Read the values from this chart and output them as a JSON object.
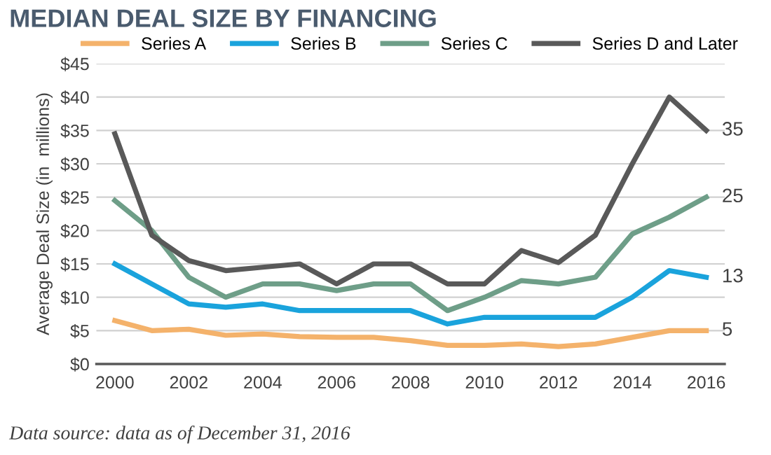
{
  "chart_data": {
    "type": "line",
    "title": "MEDIAN DEAL SIZE BY FINANCING",
    "ylabel": "Average Deal Size (in  millions)",
    "categories": [
      "2000",
      null,
      "2002",
      null,
      "2004",
      null,
      "2006",
      null,
      "2008",
      null,
      "2010",
      null,
      "2012",
      null,
      "2014",
      null,
      "2016"
    ],
    "series": [
      {
        "name": "Series A",
        "color": "#f4b26b",
        "values": [
          6.5,
          5,
          5.2,
          4.3,
          4.5,
          4.1,
          4,
          4,
          3.5,
          2.8,
          2.8,
          3,
          2.6,
          3,
          4,
          5,
          5
        ],
        "value_labels": [
          null,
          null,
          null,
          null,
          null,
          null,
          null,
          null,
          null,
          null,
          null,
          null,
          null,
          null,
          null,
          null,
          "5"
        ]
      },
      {
        "name": "Series B",
        "color": "#1aa3dc",
        "values": [
          15,
          12,
          9,
          8.5,
          9,
          8,
          8,
          8,
          8,
          6,
          7,
          7,
          7,
          7,
          10,
          14,
          13
        ],
        "value_labels": [
          null,
          null,
          null,
          null,
          null,
          null,
          null,
          null,
          null,
          null,
          null,
          null,
          null,
          null,
          null,
          null,
          "13"
        ]
      },
      {
        "name": "Series C",
        "color": "#6e9e88",
        "values": [
          24.5,
          20,
          13,
          10,
          12,
          12,
          11,
          12,
          12,
          8,
          10,
          12.5,
          12,
          13,
          19.5,
          22,
          25
        ],
        "value_labels": [
          null,
          null,
          null,
          null,
          null,
          null,
          null,
          null,
          null,
          null,
          null,
          null,
          null,
          null,
          null,
          null,
          "25"
        ]
      },
      {
        "name": "Series D and Later",
        "color": "#595959",
        "values": [
          34.5,
          19.3,
          15.5,
          14,
          14.5,
          15,
          12,
          15,
          15,
          12,
          12,
          17,
          15.2,
          19.3,
          30,
          40,
          35
        ],
        "value_labels": [
          null,
          null,
          null,
          null,
          null,
          null,
          null,
          null,
          null,
          null,
          null,
          null,
          null,
          null,
          null,
          null,
          "35"
        ]
      }
    ],
    "ylim": [
      0,
      45
    ],
    "yticks": [
      {
        "value": 0,
        "label": "$0"
      },
      {
        "value": 5,
        "label": "$5"
      },
      {
        "value": 10,
        "label": "$10"
      },
      {
        "value": 15,
        "label": "$15"
      },
      {
        "value": 20,
        "label": "$20"
      },
      {
        "value": 25,
        "label": "$25"
      },
      {
        "value": 30,
        "label": "$30"
      },
      {
        "value": 35,
        "label": "$35"
      },
      {
        "value": 40,
        "label": "$40"
      },
      {
        "value": 45,
        "label": "$45"
      }
    ],
    "grid": "y",
    "legend": "top",
    "marker": "none",
    "line_style": "solid",
    "annotations": [
      "Data source: data as of December 31, 2016"
    ]
  }
}
